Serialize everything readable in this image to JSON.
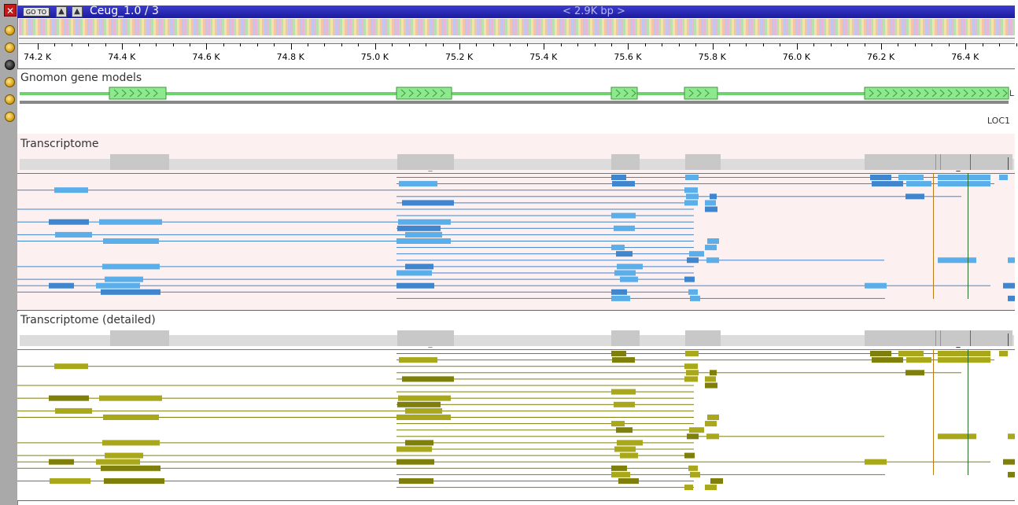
{
  "toolbar": {
    "close_icon": "close-icon",
    "goto_label": "GO TO",
    "up_icon": "arrow-up-icon",
    "down_icon": "arrow-up-icon",
    "sequence_name": "Ceug_1.0 / 3",
    "span_label": "< 2.9K bp >"
  },
  "ruler": {
    "ticks": [
      "74.2 K",
      "74.4 K",
      "74.6 K",
      "74.8 K",
      "75.0 K",
      "75.2 K",
      "75.4 K",
      "75.6 K",
      "75.8 K",
      "76.0 K",
      "76.2 K",
      "76.4 K"
    ]
  },
  "tracks": {
    "gnomon": {
      "title": "Gnomon gene models",
      "label_right": "L",
      "secondary_label": "LOC1"
    },
    "transcriptome": {
      "title": "Transcriptome"
    },
    "transcriptome_detailed": {
      "title": "Transcriptome (detailed)"
    }
  },
  "colors": {
    "titlebar": "#1b1b9c",
    "gene_model": "#6dd36d",
    "exon": "#8ee88e",
    "coverage": "#c8c8c8",
    "transcript_light": "#5aaeea",
    "transcript_dark": "#3f86cf",
    "detailed_light": "#a8a81a",
    "detailed_dark": "#7f7f0c",
    "transcript_bg": "#fdf0f0"
  }
}
